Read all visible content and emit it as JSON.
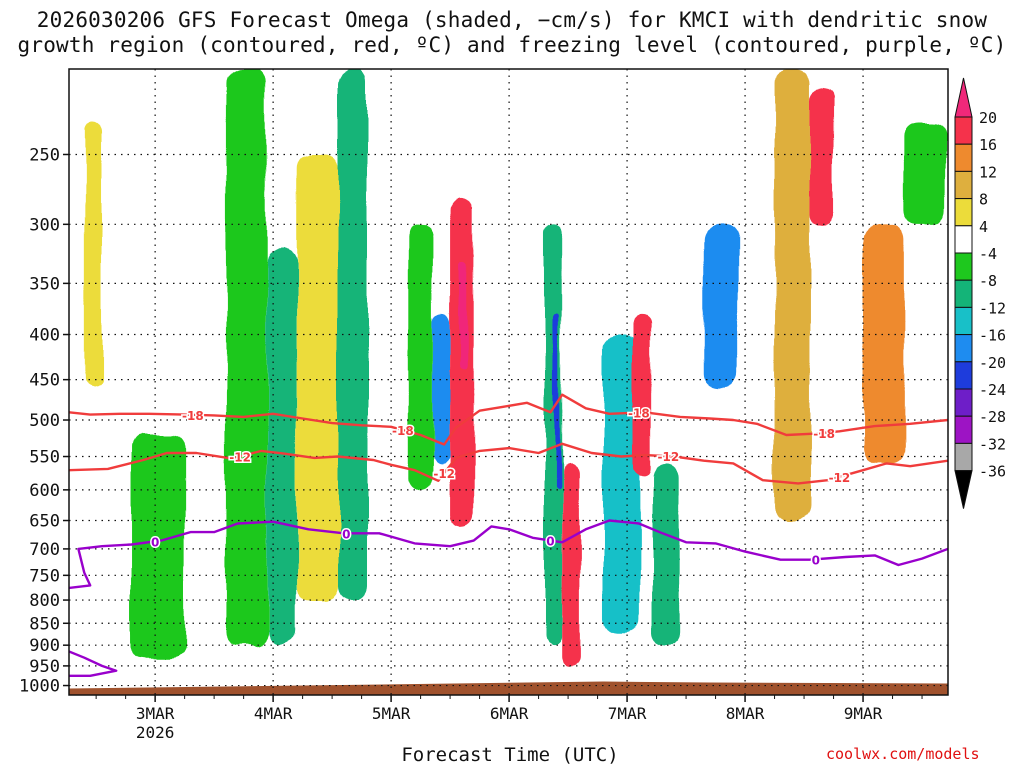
{
  "title_line1": "2026030206 GFS Forecast Omega (shaded, −cm/s) for KMCI with dendritic snow",
  "title_line2": "growth region (contoured, red, ºC) and freezing level (contoured, purple, ºC)",
  "xlabel": "Forecast Time (UTC)",
  "credit": "coolwx.com/models",
  "chart_data": {
    "type": "heatmap",
    "variable": "Omega (-cm/s)",
    "y_axis": {
      "units": "hPa",
      "range": [
        1025,
        200
      ],
      "ticks": [
        250,
        300,
        350,
        400,
        450,
        500,
        550,
        600,
        650,
        700,
        750,
        800,
        850,
        900,
        950,
        1000
      ]
    },
    "x_axis": {
      "units": "days from 3MAR 00Z",
      "range": [
        -0.73,
        6.72
      ],
      "ticks": [
        {
          "value": 0,
          "label": "3MAR",
          "sublabel": "2026"
        },
        {
          "value": 1,
          "label": "4MAR",
          "sublabel": ""
        },
        {
          "value": 2,
          "label": "5MAR",
          "sublabel": ""
        },
        {
          "value": 3,
          "label": "6MAR",
          "sublabel": ""
        },
        {
          "value": 4,
          "label": "7MAR",
          "sublabel": ""
        },
        {
          "value": 5,
          "label": "8MAR",
          "sublabel": ""
        },
        {
          "value": 6,
          "label": "9MAR",
          "sublabel": ""
        }
      ]
    },
    "colorbar": {
      "labels": [
        "20",
        "16",
        "12",
        "8",
        "4",
        "-4",
        "-8",
        "-12",
        "-16",
        "-20",
        "-24",
        "-28",
        "-32",
        "-36"
      ],
      "top_triangle_color": "#f0287a",
      "bottom_triangle_color": "#000000",
      "bins": [
        {
          "min": 16,
          "max": 20,
          "color": "#f5324b"
        },
        {
          "min": 12,
          "max": 16,
          "color": "#ee8a2e"
        },
        {
          "min": 8,
          "max": 12,
          "color": "#deaf3e"
        },
        {
          "min": 4,
          "max": 8,
          "color": "#ecdc3a"
        },
        {
          "min": -4,
          "max": 4,
          "color": "#ffffff"
        },
        {
          "min": -8,
          "max": -4,
          "color": "#1ec81e"
        },
        {
          "min": -12,
          "max": -8,
          "color": "#14b478"
        },
        {
          "min": -16,
          "max": -12,
          "color": "#18c0c8"
        },
        {
          "min": -20,
          "max": -16,
          "color": "#1e8cf0"
        },
        {
          "min": -24,
          "max": -20,
          "color": "#1e3cdc"
        },
        {
          "min": -28,
          "max": -24,
          "color": "#6e1ec8"
        },
        {
          "min": -32,
          "max": -28,
          "color": "#9d14c4"
        },
        {
          "min": -36,
          "max": -32,
          "color": "#a8a8a8"
        }
      ]
    },
    "omega_features": [
      {
        "t0": -0.6,
        "t1": -0.45,
        "p0": 230,
        "p1": 460,
        "value": 6
      },
      {
        "t0": -0.2,
        "t1": 0.25,
        "p0": 520,
        "p1": 930,
        "value": -6
      },
      {
        "t0": 0.6,
        "t1": 0.95,
        "p0": 200,
        "p1": 900,
        "value": -7
      },
      {
        "t0": 0.95,
        "t1": 1.2,
        "p0": 320,
        "p1": 900,
        "value": -10
      },
      {
        "t0": 1.2,
        "t1": 1.55,
        "p0": 250,
        "p1": 800,
        "value": 5
      },
      {
        "t0": 1.55,
        "t1": 1.8,
        "p0": 200,
        "p1": 800,
        "value": -10
      },
      {
        "t0": 2.15,
        "t1": 2.35,
        "p0": 300,
        "p1": 600,
        "value": -6
      },
      {
        "t0": 2.35,
        "t1": 2.5,
        "p0": 380,
        "p1": 560,
        "value": -18
      },
      {
        "t0": 2.5,
        "t1": 2.7,
        "p0": 280,
        "p1": 660,
        "value": 16
      },
      {
        "t0": 2.58,
        "t1": 2.65,
        "p0": 330,
        "p1": 440,
        "value": 22
      },
      {
        "t0": 3.3,
        "t1": 3.45,
        "p0": 300,
        "p1": 900,
        "value": -12
      },
      {
        "t0": 3.38,
        "t1": 3.43,
        "p0": 380,
        "p1": 600,
        "value": -22
      },
      {
        "t0": 3.45,
        "t1": 3.6,
        "p0": 560,
        "p1": 950,
        "value": 18
      },
      {
        "t0": 3.8,
        "t1": 4.1,
        "p0": 400,
        "p1": 870,
        "value": -14
      },
      {
        "t0": 4.05,
        "t1": 4.2,
        "p0": 380,
        "p1": 580,
        "value": 16
      },
      {
        "t0": 4.22,
        "t1": 4.45,
        "p0": 560,
        "p1": 900,
        "value": -10
      },
      {
        "t0": 4.65,
        "t1": 4.95,
        "p0": 300,
        "p1": 460,
        "value": -20
      },
      {
        "t0": 5.25,
        "t1": 5.55,
        "p0": 200,
        "p1": 650,
        "value": 10
      },
      {
        "t0": 5.55,
        "t1": 5.75,
        "p0": 210,
        "p1": 300,
        "value": 16
      },
      {
        "t0": 6.0,
        "t1": 6.35,
        "p0": 300,
        "p1": 560,
        "value": 12
      },
      {
        "t0": 6.35,
        "t1": 6.7,
        "p0": 230,
        "p1": 300,
        "value": -8
      }
    ],
    "contours": [
      {
        "name": "-18",
        "label": "-18",
        "color": "#f03c3c",
        "points": [
          [
            -0.73,
            490
          ],
          [
            -0.55,
            493
          ],
          [
            -0.3,
            492
          ],
          [
            -0.05,
            492
          ],
          [
            0.25,
            493
          ],
          [
            0.5,
            494
          ],
          [
            0.75,
            496
          ],
          [
            1.0,
            492
          ],
          [
            1.25,
            498
          ],
          [
            1.5,
            504
          ],
          [
            1.75,
            507
          ],
          [
            2.0,
            509
          ],
          [
            2.25,
            520
          ],
          [
            2.45,
            533
          ],
          [
            2.55,
            510
          ],
          [
            2.75,
            488
          ],
          [
            2.95,
            483
          ],
          [
            3.15,
            478
          ],
          [
            3.35,
            490
          ],
          [
            3.45,
            468
          ],
          [
            3.65,
            485
          ],
          [
            3.85,
            492
          ],
          [
            4.15,
            490
          ],
          [
            4.45,
            496
          ],
          [
            4.7,
            498
          ],
          [
            4.9,
            500
          ],
          [
            5.1,
            505
          ],
          [
            5.35,
            520
          ],
          [
            5.6,
            518
          ],
          [
            5.8,
            515
          ],
          [
            6.1,
            508
          ],
          [
            6.4,
            505
          ],
          [
            6.72,
            500
          ]
        ],
        "label_positions": [
          [
            0.32,
            0.25
          ],
          [
            2.1,
            0.6
          ],
          [
            4.1,
            0.45
          ],
          [
            5.67,
            0.8
          ]
        ]
      },
      {
        "name": "-12",
        "label": "-12",
        "color": "#f03c3c",
        "points": [
          [
            -0.73,
            570
          ],
          [
            -0.4,
            568
          ],
          [
            -0.1,
            555
          ],
          [
            0.1,
            545
          ],
          [
            0.35,
            545
          ],
          [
            0.65,
            553
          ],
          [
            0.9,
            542
          ],
          [
            1.1,
            546
          ],
          [
            1.35,
            552
          ],
          [
            1.55,
            550
          ],
          [
            1.85,
            555
          ],
          [
            2.0,
            562
          ],
          [
            2.2,
            570
          ],
          [
            2.4,
            586
          ],
          [
            2.55,
            552
          ],
          [
            2.75,
            542
          ],
          [
            3.0,
            538
          ],
          [
            3.25,
            545
          ],
          [
            3.45,
            532
          ],
          [
            3.7,
            545
          ],
          [
            3.95,
            550
          ],
          [
            4.15,
            548
          ],
          [
            4.4,
            550
          ],
          [
            4.65,
            556
          ],
          [
            4.9,
            560
          ],
          [
            5.15,
            585
          ],
          [
            5.45,
            590
          ],
          [
            5.7,
            585
          ],
          [
            6.0,
            570
          ],
          [
            6.2,
            560
          ],
          [
            6.4,
            564
          ],
          [
            6.72,
            556
          ]
        ],
        "label_positions": [
          [
            0.72,
            0.35
          ],
          [
            2.45,
            0.45
          ],
          [
            4.35,
            0.3
          ],
          [
            5.8,
            0.7
          ]
        ]
      },
      {
        "name": "0",
        "label": "0",
        "color": "#9900cc",
        "points": [
          [
            -0.73,
            775
          ],
          [
            -0.55,
            770
          ],
          [
            -0.6,
            745
          ],
          [
            -0.65,
            700
          ],
          [
            -0.45,
            695
          ],
          [
            -0.2,
            692
          ],
          [
            0.05,
            685
          ],
          [
            0.3,
            670
          ],
          [
            0.5,
            670
          ],
          [
            0.7,
            655
          ],
          [
            1.0,
            652
          ],
          [
            1.3,
            665
          ],
          [
            1.6,
            672
          ],
          [
            1.9,
            672
          ],
          [
            2.2,
            690
          ],
          [
            2.5,
            695
          ],
          [
            2.7,
            685
          ],
          [
            2.85,
            660
          ],
          [
            3.0,
            665
          ],
          [
            3.2,
            680
          ],
          [
            3.45,
            688
          ],
          [
            3.65,
            665
          ],
          [
            3.85,
            650
          ],
          [
            4.1,
            655
          ],
          [
            4.3,
            672
          ],
          [
            4.5,
            688
          ],
          [
            4.75,
            690
          ],
          [
            5.0,
            705
          ],
          [
            5.3,
            720
          ],
          [
            5.55,
            720
          ],
          [
            5.85,
            715
          ],
          [
            6.1,
            712
          ],
          [
            6.3,
            730
          ],
          [
            6.5,
            718
          ],
          [
            6.72,
            700
          ]
        ],
        "label_positions": [
          [
            0.0,
            0.3
          ],
          [
            1.62,
            0.25
          ],
          [
            3.35,
            0.25
          ],
          [
            5.6,
            0.25
          ]
        ]
      },
      {
        "name": "0-lower",
        "label": "",
        "color": "#9900cc",
        "points": [
          [
            -0.73,
            915
          ],
          [
            -0.6,
            930
          ],
          [
            -0.45,
            950
          ],
          [
            -0.33,
            962
          ],
          [
            -0.55,
            975
          ],
          [
            -0.73,
            975
          ]
        ],
        "label_positions": []
      }
    ],
    "terrain_color": "#a0522d"
  }
}
